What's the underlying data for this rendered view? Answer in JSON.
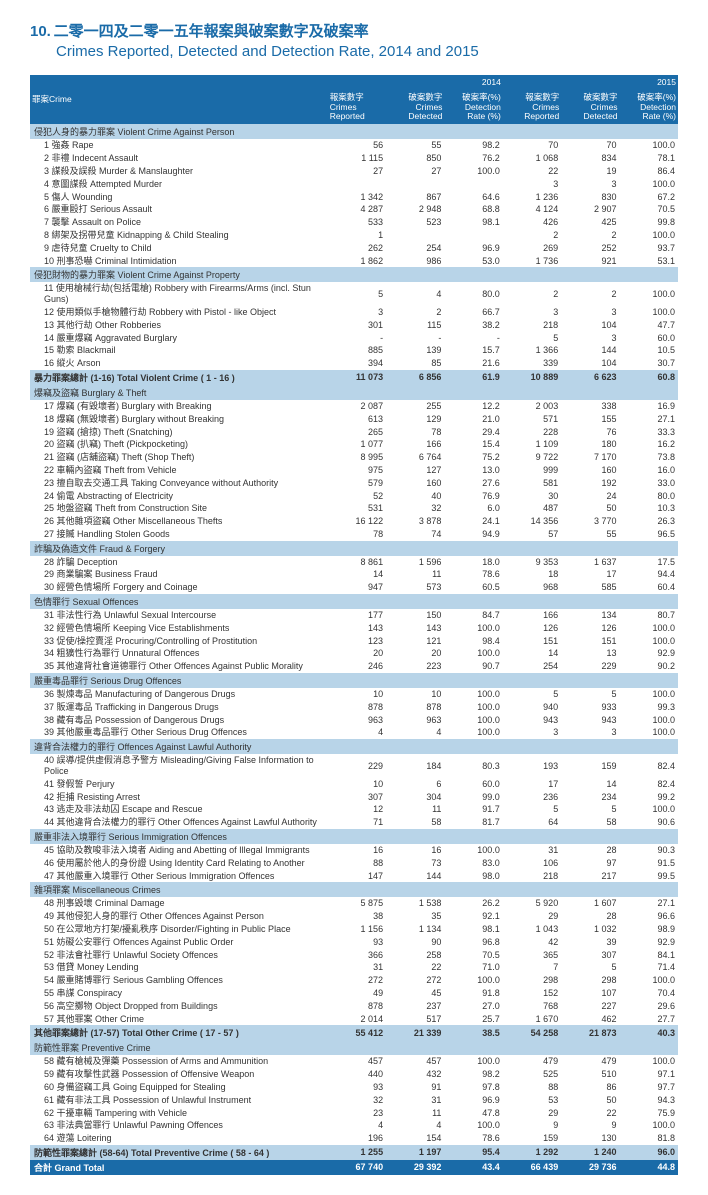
{
  "title": {
    "number": "10.",
    "zh": "二零一四及二零一五年報案與破案數字及破案率",
    "en": "Crimes Reported, Detected and Detection Rate, 2014 and 2015"
  },
  "headers": {
    "crime_label": "罪案Crime",
    "year2014": "2014",
    "year2015": "2015",
    "reported_zh": "報案數字",
    "reported_en": "Crimes Reported",
    "detected_zh": "破案數字",
    "detected_en": "Crimes Detected",
    "rate_zh": "破案率(%)",
    "rate_en": "Detection Rate (%)"
  },
  "sections": [
    {
      "header": "侵犯人身的暴力罪案 Violent Crime Against Person",
      "rows": [
        {
          "label": "1 強姦 Rape",
          "a": "56",
          "b": "55",
          "c": "98.2",
          "d": "70",
          "e": "70",
          "f": "100.0"
        },
        {
          "label": "2 非禮 Indecent Assault",
          "a": "1 115",
          "b": "850",
          "c": "76.2",
          "d": "1 068",
          "e": "834",
          "f": "78.1"
        },
        {
          "label": "3 謀殺及誤殺 Murder & Manslaughter",
          "a": "27",
          "b": "27",
          "c": "100.0",
          "d": "22",
          "e": "19",
          "f": "86.4"
        },
        {
          "label": "4 意圖謀殺 Attempted Murder",
          "a": "",
          "b": "",
          "c": "",
          "d": "3",
          "e": "3",
          "f": "100.0"
        },
        {
          "label": "5 傷人 Wounding",
          "a": "1 342",
          "b": "867",
          "c": "64.6",
          "d": "1 236",
          "e": "830",
          "f": "67.2"
        },
        {
          "label": "6 嚴重毆打 Serious Assault",
          "a": "4 287",
          "b": "2 948",
          "c": "68.8",
          "d": "4 124",
          "e": "2 907",
          "f": "70.5"
        },
        {
          "label": "7 襲擊 Assault on Police",
          "a": "533",
          "b": "523",
          "c": "98.1",
          "d": "426",
          "e": "425",
          "f": "99.8"
        },
        {
          "label": "8 綁架及拐帶兒童 Kidnapping & Child Stealing",
          "a": "1",
          "b": "",
          "c": "",
          "d": "2",
          "e": "2",
          "f": "100.0"
        },
        {
          "label": "9 虐待兒童 Cruelty to Child",
          "a": "262",
          "b": "254",
          "c": "96.9",
          "d": "269",
          "e": "252",
          "f": "93.7"
        },
        {
          "label": "10 刑事恐嚇 Criminal Intimidation",
          "a": "1 862",
          "b": "986",
          "c": "53.0",
          "d": "1 736",
          "e": "921",
          "f": "53.1"
        }
      ]
    },
    {
      "header": "侵犯財物的暴力罪案 Violent Crime Against Property",
      "rows": [
        {
          "label": "11 使用槍械行劫(包括電槍) Robbery with Firearms/Arms (incl. Stun Guns)",
          "a": "5",
          "b": "4",
          "c": "80.0",
          "d": "2",
          "e": "2",
          "f": "100.0"
        },
        {
          "label": "12 使用類似手槍物體行劫 Robbery with Pistol - like Object",
          "a": "3",
          "b": "2",
          "c": "66.7",
          "d": "3",
          "e": "3",
          "f": "100.0"
        },
        {
          "label": "13 其他行劫 Other Robberies",
          "a": "301",
          "b": "115",
          "c": "38.2",
          "d": "218",
          "e": "104",
          "f": "47.7"
        },
        {
          "label": "14 嚴重爆竊 Aggravated Burglary",
          "a": "-",
          "b": "-",
          "c": "-",
          "d": "5",
          "e": "3",
          "f": "60.0"
        },
        {
          "label": "15 勒索 Blackmail",
          "a": "885",
          "b": "139",
          "c": "15.7",
          "d": "1 366",
          "e": "144",
          "f": "10.5"
        },
        {
          "label": "16 縱火 Arson",
          "a": "394",
          "b": "85",
          "c": "21.6",
          "d": "339",
          "e": "104",
          "f": "30.7"
        }
      ]
    }
  ],
  "violent_subtotal": {
    "label": "暴力罪案總計 (1-16) Total Violent Crime ( 1 - 16 )",
    "a": "11 073",
    "b": "6 856",
    "c": "61.9",
    "d": "10 889",
    "e": "6 623",
    "f": "60.8"
  },
  "sections2": [
    {
      "header": "爆竊及盜竊 Burglary & Theft",
      "rows": [
        {
          "label": "17 爆竊 (有毀壞者) Burglary with Breaking",
          "a": "2 087",
          "b": "255",
          "c": "12.2",
          "d": "2 003",
          "e": "338",
          "f": "16.9"
        },
        {
          "label": "18 爆竊 (無毀壞者) Burglary without Breaking",
          "a": "613",
          "b": "129",
          "c": "21.0",
          "d": "571",
          "e": "155",
          "f": "27.1"
        },
        {
          "label": "19 盜竊 (搶掠) Theft (Snatching)",
          "a": "265",
          "b": "78",
          "c": "29.4",
          "d": "228",
          "e": "76",
          "f": "33.3"
        },
        {
          "label": "20 盜竊 (扒竊) Theft (Pickpocketing)",
          "a": "1 077",
          "b": "166",
          "c": "15.4",
          "d": "1 109",
          "e": "180",
          "f": "16.2"
        },
        {
          "label": "21 盜竊 (店舖盜竊) Theft (Shop Theft)",
          "a": "8 995",
          "b": "6 764",
          "c": "75.2",
          "d": "9 722",
          "e": "7 170",
          "f": "73.8"
        },
        {
          "label": "22 車輛內盜竊 Theft from Vehicle",
          "a": "975",
          "b": "127",
          "c": "13.0",
          "d": "999",
          "e": "160",
          "f": "16.0"
        },
        {
          "label": "23 擅自取去交通工具 Taking Conveyance without Authority",
          "a": "579",
          "b": "160",
          "c": "27.6",
          "d": "581",
          "e": "192",
          "f": "33.0"
        },
        {
          "label": "24 偷電 Abstracting of Electricity",
          "a": "52",
          "b": "40",
          "c": "76.9",
          "d": "30",
          "e": "24",
          "f": "80.0"
        },
        {
          "label": "25 地盤盜竊 Theft from Construction Site",
          "a": "531",
          "b": "32",
          "c": "6.0",
          "d": "487",
          "e": "50",
          "f": "10.3"
        },
        {
          "label": "26 其他雜項盜竊 Other Miscellaneous Thefts",
          "a": "16 122",
          "b": "3 878",
          "c": "24.1",
          "d": "14 356",
          "e": "3 770",
          "f": "26.3"
        },
        {
          "label": "27 接贓 Handling Stolen Goods",
          "a": "78",
          "b": "74",
          "c": "94.9",
          "d": "57",
          "e": "55",
          "f": "96.5"
        }
      ]
    },
    {
      "header": "詐騙及偽造文件 Fraud & Forgery",
      "rows": [
        {
          "label": "28 詐騙 Deception",
          "a": "8 861",
          "b": "1 596",
          "c": "18.0",
          "d": "9 353",
          "e": "1 637",
          "f": "17.5"
        },
        {
          "label": "29 商業騙案 Business Fraud",
          "a": "14",
          "b": "11",
          "c": "78.6",
          "d": "18",
          "e": "17",
          "f": "94.4"
        },
        {
          "label": "30 經營色情場所 Forgery and Coinage",
          "a": "947",
          "b": "573",
          "c": "60.5",
          "d": "968",
          "e": "585",
          "f": "60.4"
        }
      ]
    },
    {
      "header": "色情罪行 Sexual Offences",
      "rows": [
        {
          "label": "31 非法性行為 Unlawful Sexual Intercourse",
          "a": "177",
          "b": "150",
          "c": "84.7",
          "d": "166",
          "e": "134",
          "f": "80.7"
        },
        {
          "label": "32 經營色情場所 Keeping Vice Establishments",
          "a": "143",
          "b": "143",
          "c": "100.0",
          "d": "126",
          "e": "126",
          "f": "100.0"
        },
        {
          "label": "33 促使/操控賣淫 Procuring/Controlling of Prostitution",
          "a": "123",
          "b": "121",
          "c": "98.4",
          "d": "151",
          "e": "151",
          "f": "100.0"
        },
        {
          "label": "34 粗獷性行為罪行 Unnatural Offences",
          "a": "20",
          "b": "20",
          "c": "100.0",
          "d": "14",
          "e": "13",
          "f": "92.9"
        },
        {
          "label": "35 其他違背社會道德罪行 Other Offences Against Public Morality",
          "a": "246",
          "b": "223",
          "c": "90.7",
          "d": "254",
          "e": "229",
          "f": "90.2"
        }
      ]
    },
    {
      "header": "嚴重毒品罪行 Serious Drug Offences",
      "rows": [
        {
          "label": "36 製煉毒品 Manufacturing of Dangerous Drugs",
          "a": "10",
          "b": "10",
          "c": "100.0",
          "d": "5",
          "e": "5",
          "f": "100.0"
        },
        {
          "label": "37 販運毒品 Trafficking in Dangerous Drugs",
          "a": "878",
          "b": "878",
          "c": "100.0",
          "d": "940",
          "e": "933",
          "f": "99.3"
        },
        {
          "label": "38 藏有毒品 Possession of Dangerous Drugs",
          "a": "963",
          "b": "963",
          "c": "100.0",
          "d": "943",
          "e": "943",
          "f": "100.0"
        },
        {
          "label": "39 其他嚴重毒品罪行 Other Serious Drug Offences",
          "a": "4",
          "b": "4",
          "c": "100.0",
          "d": "3",
          "e": "3",
          "f": "100.0"
        }
      ]
    },
    {
      "header": "違背合法權力的罪行 Offences Against Lawful Authority",
      "rows": [
        {
          "label": "40 誤導/提供虛假消息予警方 Misleading/Giving False Information to Police",
          "a": "229",
          "b": "184",
          "c": "80.3",
          "d": "193",
          "e": "159",
          "f": "82.4"
        },
        {
          "label": "41 發假誓 Perjury",
          "a": "10",
          "b": "6",
          "c": "60.0",
          "d": "17",
          "e": "14",
          "f": "82.4"
        },
        {
          "label": "42 拒捕 Resisting Arrest",
          "a": "307",
          "b": "304",
          "c": "99.0",
          "d": "236",
          "e": "234",
          "f": "99.2"
        },
        {
          "label": "43 逃走及非法劫囚 Escape and Rescue",
          "a": "12",
          "b": "11",
          "c": "91.7",
          "d": "5",
          "e": "5",
          "f": "100.0"
        },
        {
          "label": "44 其他違背合法權力的罪行 Other Offences Against Lawful Authority",
          "a": "71",
          "b": "58",
          "c": "81.7",
          "d": "64",
          "e": "58",
          "f": "90.6"
        }
      ]
    },
    {
      "header": "嚴重非法入境罪行 Serious Immigration Offences",
      "rows": [
        {
          "label": "45 協助及教唆非法入境者 Aiding and Abetting of Illegal Immigrants",
          "a": "16",
          "b": "16",
          "c": "100.0",
          "d": "31",
          "e": "28",
          "f": "90.3"
        },
        {
          "label": "46 使用屬於他人的身份證 Using Identity Card Relating to Another",
          "a": "88",
          "b": "73",
          "c": "83.0",
          "d": "106",
          "e": "97",
          "f": "91.5"
        },
        {
          "label": "47 其他嚴重入境罪行 Other Serious Immigration Offences",
          "a": "147",
          "b": "144",
          "c": "98.0",
          "d": "218",
          "e": "217",
          "f": "99.5"
        }
      ]
    },
    {
      "header": "雜項罪案 Miscellaneous Crimes",
      "rows": [
        {
          "label": "48 刑事毀壞 Criminal Damage",
          "a": "5 875",
          "b": "1 538",
          "c": "26.2",
          "d": "5 920",
          "e": "1 607",
          "f": "27.1"
        },
        {
          "label": "49 其他侵犯人身的罪行  Other Offences Against Person",
          "a": "38",
          "b": "35",
          "c": "92.1",
          "d": "29",
          "e": "28",
          "f": "96.6"
        },
        {
          "label": "50 在公眾地方打架/擾亂秩序 Disorder/Fighting in Public Place",
          "a": "1 156",
          "b": "1 134",
          "c": "98.1",
          "d": "1 043",
          "e": "1 032",
          "f": "98.9"
        },
        {
          "label": "51 妨礙公安罪行 Offences Against Public Order",
          "a": "93",
          "b": "90",
          "c": "96.8",
          "d": "42",
          "e": "39",
          "f": "92.9"
        },
        {
          "label": "52 非法會社罪行 Unlawful Society Offences",
          "a": "366",
          "b": "258",
          "c": "70.5",
          "d": "365",
          "e": "307",
          "f": "84.1"
        },
        {
          "label": "53 借貸 Money Lending",
          "a": "31",
          "b": "22",
          "c": "71.0",
          "d": "7",
          "e": "5",
          "f": "71.4"
        },
        {
          "label": "54 嚴重賭博罪行 Serious Gambling Offences",
          "a": "272",
          "b": "272",
          "c": "100.0",
          "d": "298",
          "e": "298",
          "f": "100.0"
        },
        {
          "label": "55 串謀 Conspiracy",
          "a": "49",
          "b": "45",
          "c": "91.8",
          "d": "152",
          "e": "107",
          "f": "70.4"
        },
        {
          "label": "56 高空擲物 Object Dropped from Buildings",
          "a": "878",
          "b": "237",
          "c": "27.0",
          "d": "768",
          "e": "227",
          "f": "29.6"
        },
        {
          "label": "57 其他罪案 Other Crime",
          "a": "2 014",
          "b": "517",
          "c": "25.7",
          "d": "1 670",
          "e": "462",
          "f": "27.7"
        }
      ]
    }
  ],
  "other_subtotal": {
    "label": "其他罪案總計 (17-57) Total Other Crime ( 17 - 57 )",
    "a": "55 412",
    "b": "21 339",
    "c": "38.5",
    "d": "54 258",
    "e": "21 873",
    "f": "40.3"
  },
  "sections3": [
    {
      "header": "防範性罪案 Preventive Crime",
      "rows": [
        {
          "label": "58 藏有槍械及彈藥 Possession of Arms and Ammunition",
          "a": "457",
          "b": "457",
          "c": "100.0",
          "d": "479",
          "e": "479",
          "f": "100.0"
        },
        {
          "label": "59 藏有攻擊性武器 Possession of Offensive Weapon",
          "a": "440",
          "b": "432",
          "c": "98.2",
          "d": "525",
          "e": "510",
          "f": "97.1"
        },
        {
          "label": "60 身備盜竊工具 Going Equipped for Stealing",
          "a": "93",
          "b": "91",
          "c": "97.8",
          "d": "88",
          "e": "86",
          "f": "97.7"
        },
        {
          "label": "61 藏有非法工具 Possession of Unlawful Instrument",
          "a": "32",
          "b": "31",
          "c": "96.9",
          "d": "53",
          "e": "50",
          "f": "94.3"
        },
        {
          "label": "62 干擾車輛 Tampering with Vehicle",
          "a": "23",
          "b": "11",
          "c": "47.8",
          "d": "29",
          "e": "22",
          "f": "75.9"
        },
        {
          "label": "63 非法典當罪行 Unlawful Pawning Offences",
          "a": "4",
          "b": "4",
          "c": "100.0",
          "d": "9",
          "e": "9",
          "f": "100.0"
        },
        {
          "label": "64 遊蕩 Loitering",
          "a": "196",
          "b": "154",
          "c": "78.6",
          "d": "159",
          "e": "130",
          "f": "81.8"
        }
      ]
    }
  ],
  "preventive_subtotal": {
    "label": "防範性罪案總計 (58-64) Total Preventive Crime ( 58 - 64 )",
    "a": "1 255",
    "b": "1 197",
    "c": "95.4",
    "d": "1 292",
    "e": "1 240",
    "f": "96.0"
  },
  "grand_total": {
    "label": "合計 Grand Total",
    "a": "67 740",
    "b": "29 392",
    "c": "43.4",
    "d": "66 439",
    "e": "29 736",
    "f": "44.8"
  }
}
